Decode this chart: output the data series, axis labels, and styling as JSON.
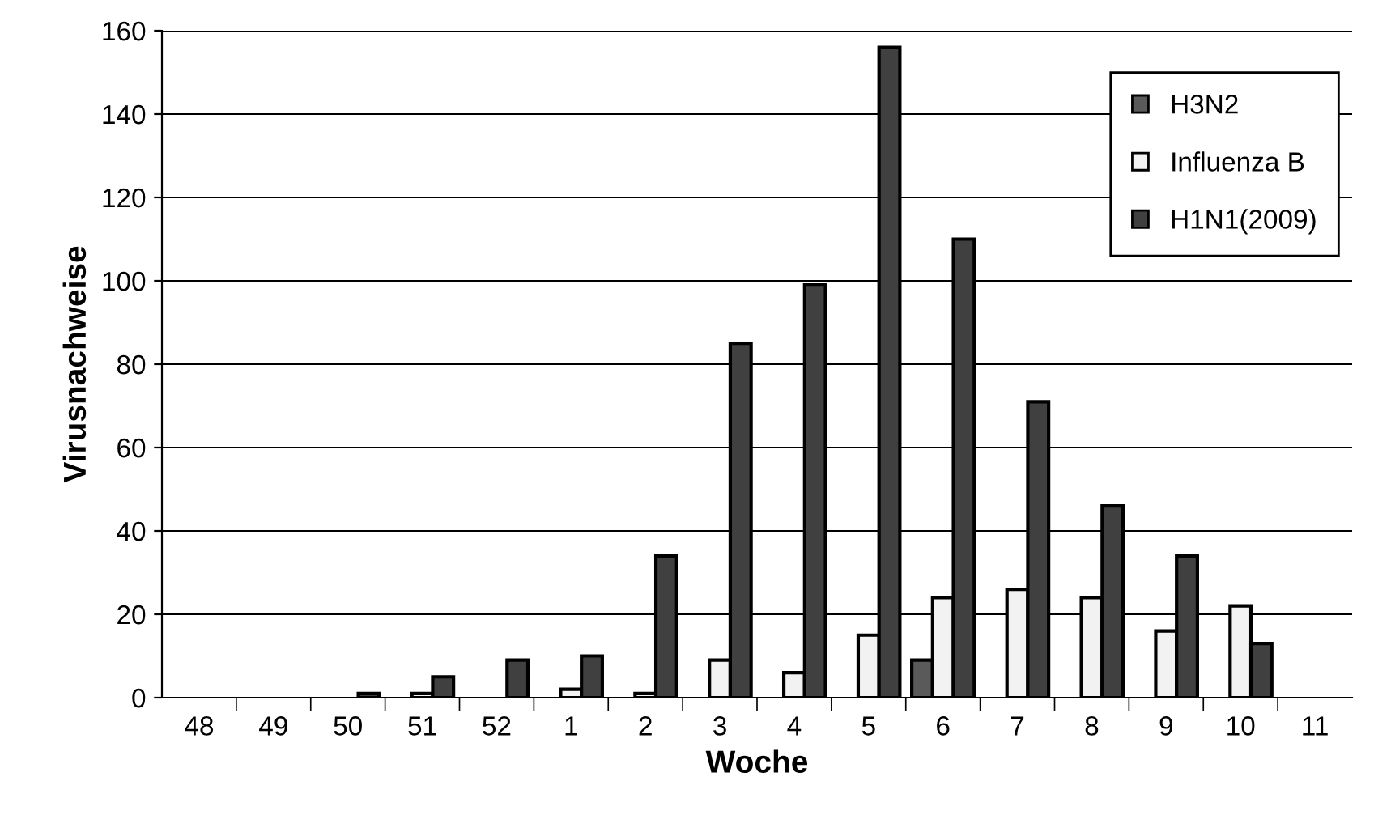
{
  "chart_data": {
    "type": "bar",
    "xlabel": "Woche",
    "ylabel": "Virusnachweise",
    "categories": [
      "48",
      "49",
      "50",
      "51",
      "52",
      "1",
      "2",
      "3",
      "4",
      "5",
      "6",
      "7",
      "8",
      "9",
      "10",
      "11"
    ],
    "series": [
      {
        "name": "H3N2",
        "color": "#5a5a5a",
        "values": [
          0,
          0,
          0,
          0,
          0,
          0,
          0,
          0,
          0,
          0,
          9,
          0,
          0,
          0,
          0,
          0
        ]
      },
      {
        "name": "Influenza B",
        "color": "#f2f2f2",
        "values": [
          0,
          0,
          0,
          1,
          0,
          2,
          1,
          9,
          6,
          15,
          24,
          26,
          24,
          16,
          22,
          0
        ]
      },
      {
        "name": "H1N1(2009)",
        "color": "#404040",
        "values": [
          0,
          0,
          1,
          5,
          9,
          10,
          34,
          85,
          99,
          156,
          110,
          71,
          46,
          34,
          13,
          0
        ]
      }
    ],
    "ylim": [
      0,
      160
    ],
    "yticks": [
      0,
      20,
      40,
      60,
      80,
      100,
      120,
      140,
      160
    ],
    "grid": "y",
    "legend": "right"
  }
}
